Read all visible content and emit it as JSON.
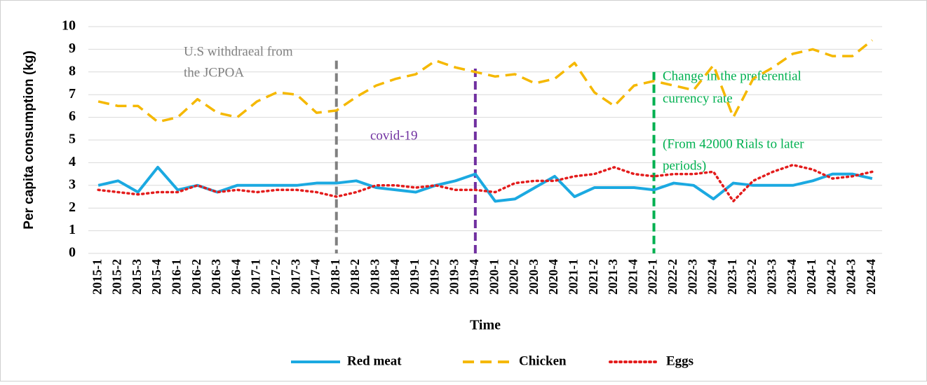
{
  "chart_data": {
    "type": "line",
    "x_label": "Time",
    "y_label": "Per capita consumption (kg)",
    "categories": [
      "2015-1",
      "2015-2",
      "2015-3",
      "2015-4",
      "2016-1",
      "2016-2",
      "2016-3",
      "2016-4",
      "2017-1",
      "2017-2",
      "2017-3",
      "2017-4",
      "2018-1",
      "2018-2",
      "2018-3",
      "2018-4",
      "2019-1",
      "2019-2",
      "2019-3",
      "2019-4",
      "2020-1",
      "2020-2",
      "2020-3",
      "2020-4",
      "2021-1",
      "2021-2",
      "2021-3",
      "2021-4",
      "2022-1",
      "2022-2",
      "2022-3",
      "2022-4",
      "2023-1",
      "2023-2",
      "2023-3",
      "2023-4",
      "2024-1",
      "2024-2",
      "2024-3",
      "2024-4"
    ],
    "series": [
      {
        "name": "Red meat",
        "color": "#1ba9e1",
        "dash": "solid",
        "values": [
          3.0,
          3.2,
          2.7,
          3.8,
          2.8,
          3.0,
          2.7,
          3.0,
          3.0,
          3.0,
          3.0,
          3.1,
          3.1,
          3.2,
          2.9,
          2.8,
          2.7,
          3.0,
          3.2,
          3.5,
          2.3,
          2.4,
          2.9,
          3.4,
          2.5,
          2.9,
          2.9,
          2.9,
          2.8,
          3.1,
          3.0,
          2.4,
          3.1,
          3.0,
          3.0,
          3.0,
          3.2,
          3.5,
          3.5,
          3.3
        ]
      },
      {
        "name": "Chicken",
        "color": "#f5b800",
        "dash": "dashed",
        "values": [
          6.7,
          6.5,
          6.5,
          5.8,
          6.0,
          6.8,
          6.2,
          6.0,
          6.7,
          7.1,
          7.0,
          6.2,
          6.3,
          6.9,
          7.4,
          7.7,
          7.9,
          8.5,
          8.2,
          8.0,
          7.8,
          7.9,
          7.5,
          7.7,
          8.4,
          7.1,
          6.5,
          7.4,
          7.6,
          7.4,
          7.2,
          8.3,
          6.0,
          7.7,
          8.2,
          8.8,
          9.0,
          8.7,
          8.7,
          9.4
        ]
      },
      {
        "name": "Eggs",
        "color": "#e31c1c",
        "dash": "dotted",
        "values": [
          2.8,
          2.7,
          2.6,
          2.7,
          2.7,
          3.0,
          2.7,
          2.8,
          2.7,
          2.8,
          2.8,
          2.7,
          2.5,
          2.7,
          3.0,
          3.0,
          2.9,
          3.0,
          2.8,
          2.8,
          2.7,
          3.1,
          3.2,
          3.2,
          3.4,
          3.5,
          3.8,
          3.5,
          3.4,
          3.5,
          3.5,
          3.6,
          2.3,
          3.2,
          3.6,
          3.9,
          3.7,
          3.3,
          3.4,
          3.6
        ]
      }
    ],
    "ylim": [
      0,
      10
    ],
    "yticks": [
      0,
      1,
      2,
      3,
      4,
      5,
      6,
      7,
      8,
      9,
      10
    ],
    "grid": true,
    "legend": "bottom",
    "annotations": [
      {
        "x": "2018-1",
        "y_top": 8.5,
        "color": "#808080",
        "lines": [
          "U.S withdraeal from",
          "the JCPOA"
        ]
      },
      {
        "x": "2019-4",
        "y_top": 8.15,
        "color": "#7030a0",
        "lines": [
          "covid-19"
        ]
      },
      {
        "x": "2022-1",
        "y_top": 8.0,
        "color": "#00b050",
        "lines": [
          "Change in the preferential",
          "currency rate",
          "(From 42000 Rials to later",
          "periods)"
        ]
      }
    ]
  }
}
